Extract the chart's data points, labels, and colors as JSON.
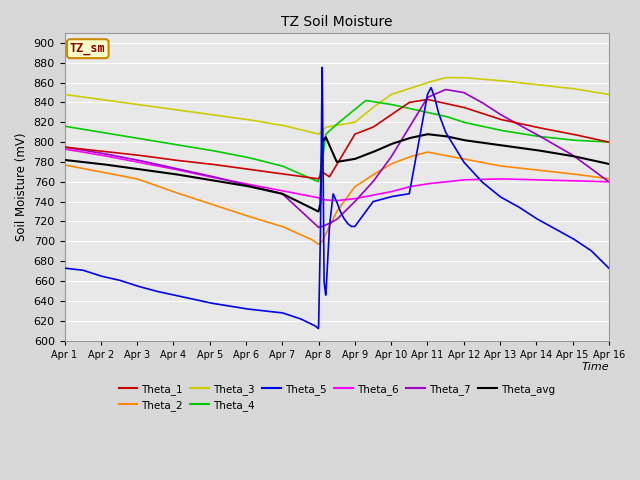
{
  "title": "TZ Soil Moisture",
  "xlabel": "Time",
  "ylabel": "Soil Moisture (mV)",
  "ylim": [
    600,
    910
  ],
  "yticks": [
    600,
    620,
    640,
    660,
    680,
    700,
    720,
    740,
    760,
    780,
    800,
    820,
    840,
    860,
    880,
    900
  ],
  "x_labels": [
    "Apr 1",
    "Apr 2",
    "Apr 3",
    "Apr 4",
    "Apr 5",
    "Apr 6",
    "Apr 7",
    "Apr 8",
    "Apr 9",
    "Apr 10",
    "Apr 11",
    "Apr 12",
    "Apr 13",
    "Apr 14",
    "Apr 15",
    "Apr 16"
  ],
  "colors": {
    "Theta_1": "#cc0000",
    "Theta_2": "#ff8800",
    "Theta_3": "#cccc00",
    "Theta_4": "#00cc00",
    "Theta_5": "#0000ee",
    "Theta_6": "#ff00ff",
    "Theta_7": "#9900cc",
    "Theta_avg": "#000000"
  },
  "label_box": {
    "text": "TZ_sm",
    "facecolor": "#ffffcc",
    "edgecolor": "#cc8800",
    "textcolor": "#880000"
  },
  "background_color": "#e8e8e8",
  "grid_color": "#ffffff"
}
